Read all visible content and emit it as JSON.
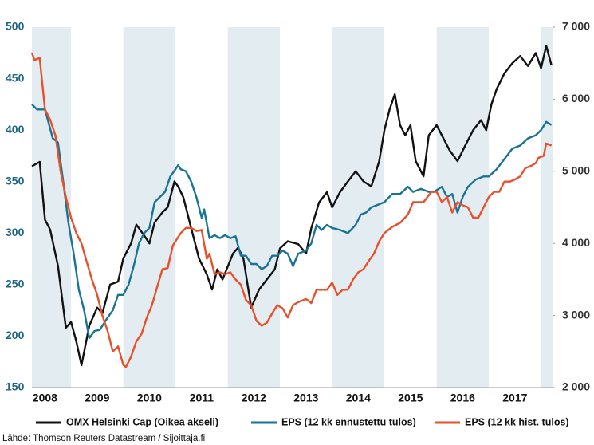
{
  "chart_data": {
    "type": "line",
    "source": "Lähde: Thomson Reuters Datastream / Sijoittaja.fi",
    "xlim": [
      2008.25,
      2018.22
    ],
    "xticks": [
      {
        "value": 2008.5,
        "label": "2008"
      },
      {
        "value": 2009.5,
        "label": "2009"
      },
      {
        "value": 2010.5,
        "label": "2010"
      },
      {
        "value": 2011.5,
        "label": "2011"
      },
      {
        "value": 2012.5,
        "label": "2012"
      },
      {
        "value": 2013.5,
        "label": "2013"
      },
      {
        "value": 2014.5,
        "label": "2014"
      },
      {
        "value": 2015.5,
        "label": "2015"
      },
      {
        "value": 2016.5,
        "label": "2016"
      },
      {
        "value": 2017.5,
        "label": "2017"
      }
    ],
    "ylim": [
      150,
      500
    ],
    "yticks": [
      150,
      200,
      250,
      300,
      350,
      400,
      450,
      500
    ],
    "y2lim": [
      2000,
      7000
    ],
    "y2ticks": [
      {
        "value": 2000,
        "label": "2 000"
      },
      {
        "value": 3000,
        "label": "3 000"
      },
      {
        "value": 4000,
        "label": "4 000"
      },
      {
        "value": 5000,
        "label": "5 000"
      },
      {
        "value": 6000,
        "label": "6 000"
      },
      {
        "value": 7000,
        "label": "7 000"
      }
    ],
    "alternate_year_shading": "#e3edf1",
    "series": [
      {
        "name": "OMX Helsinki Cap (Oikea akseli)",
        "color": "#111111",
        "axis": "y2",
        "x": [
          2008.25,
          2008.4,
          2008.5,
          2008.6,
          2008.75,
          2008.9,
          2009.0,
          2009.1,
          2009.2,
          2009.35,
          2009.5,
          2009.6,
          2009.75,
          2009.9,
          2010.0,
          2010.15,
          2010.25,
          2010.4,
          2010.5,
          2010.6,
          2010.75,
          2010.85,
          2010.98,
          2011.05,
          2011.15,
          2011.3,
          2011.45,
          2011.6,
          2011.7,
          2011.8,
          2011.9,
          2012.1,
          2012.2,
          2012.3,
          2012.45,
          2012.6,
          2012.75,
          2012.9,
          2013.0,
          2013.15,
          2013.35,
          2013.5,
          2013.6,
          2013.75,
          2013.9,
          2014.0,
          2014.15,
          2014.3,
          2014.45,
          2014.6,
          2014.75,
          2014.9,
          2015.0,
          2015.1,
          2015.2,
          2015.3,
          2015.4,
          2015.5,
          2015.6,
          2015.75,
          2015.85,
          2016.0,
          2016.1,
          2016.25,
          2016.4,
          2016.55,
          2016.7,
          2016.85,
          2016.95,
          2017.05,
          2017.15,
          2017.3,
          2017.45,
          2017.6,
          2017.75,
          2017.9,
          2018.0,
          2018.1,
          2018.2
        ],
        "values": [
          5070,
          5130,
          4330,
          4190,
          3690,
          2830,
          2910,
          2640,
          2310,
          2860,
          3110,
          3030,
          3430,
          3470,
          3790,
          4000,
          4260,
          4110,
          4000,
          4290,
          4430,
          4500,
          4860,
          4790,
          4640,
          4210,
          3790,
          3570,
          3360,
          3640,
          3500,
          3860,
          3940,
          3790,
          3110,
          3360,
          3500,
          3640,
          3930,
          4030,
          3990,
          3860,
          4210,
          4570,
          4710,
          4500,
          4710,
          4860,
          5000,
          4860,
          4790,
          5140,
          5570,
          5860,
          6070,
          5640,
          5500,
          5640,
          5140,
          4930,
          5500,
          5640,
          5500,
          5290,
          5140,
          5360,
          5570,
          5710,
          5570,
          5930,
          6140,
          6360,
          6500,
          6600,
          6460,
          6640,
          6430,
          6740,
          6470
        ]
      },
      {
        "name": "EPS (12 kk ennustettu tulos)",
        "color": "#1a7394",
        "x": [
          2008.25,
          2008.35,
          2008.5,
          2008.65,
          2008.75,
          2008.85,
          2008.95,
          2009.05,
          2009.15,
          2009.25,
          2009.35,
          2009.45,
          2009.55,
          2009.7,
          2009.8,
          2009.9,
          2010.0,
          2010.1,
          2010.2,
          2010.3,
          2010.4,
          2010.5,
          2010.6,
          2010.7,
          2010.8,
          2010.9,
          2011.0,
          2011.05,
          2011.1,
          2011.2,
          2011.3,
          2011.4,
          2011.5,
          2011.55,
          2011.65,
          2011.75,
          2011.85,
          2011.95,
          2012.05,
          2012.15,
          2012.25,
          2012.35,
          2012.45,
          2012.55,
          2012.65,
          2012.75,
          2012.85,
          2012.95,
          2013.05,
          2013.15,
          2013.25,
          2013.35,
          2013.5,
          2013.6,
          2013.7,
          2013.8,
          2013.9,
          2014.0,
          2014.15,
          2014.3,
          2014.45,
          2014.55,
          2014.65,
          2014.75,
          2014.9,
          2015.0,
          2015.15,
          2015.3,
          2015.45,
          2015.55,
          2015.7,
          2015.85,
          2015.95,
          2016.1,
          2016.2,
          2016.3,
          2016.4,
          2016.5,
          2016.6,
          2016.75,
          2016.9,
          2017.0,
          2017.15,
          2017.3,
          2017.45,
          2017.6,
          2017.75,
          2017.9,
          2018.0,
          2018.1,
          2018.2
        ],
        "values": [
          425,
          420,
          420,
          392,
          388,
          350,
          310,
          280,
          245,
          225,
          198,
          205,
          206,
          218,
          225,
          240,
          240,
          250,
          268,
          290,
          300,
          305,
          330,
          335,
          340,
          355,
          362,
          366,
          362,
          360,
          350,
          335,
          315,
          323,
          295,
          298,
          295,
          298,
          295,
          297,
          278,
          278,
          270,
          270,
          265,
          268,
          278,
          278,
          283,
          280,
          268,
          280,
          283,
          290,
          308,
          303,
          308,
          305,
          303,
          300,
          308,
          318,
          320,
          325,
          328,
          330,
          338,
          338,
          345,
          340,
          343,
          340,
          340,
          345,
          335,
          338,
          320,
          335,
          345,
          352,
          355,
          355,
          362,
          372,
          382,
          385,
          392,
          395,
          400,
          408,
          405
        ]
      },
      {
        "name": "EPS (12 kk hist. tulos)",
        "color": "#e8502a",
        "x": [
          2008.25,
          2008.3,
          2008.4,
          2008.5,
          2008.6,
          2008.7,
          2008.8,
          2008.9,
          2009.0,
          2009.1,
          2009.2,
          2009.3,
          2009.4,
          2009.5,
          2009.6,
          2009.7,
          2009.8,
          2009.9,
          2010.0,
          2010.05,
          2010.15,
          2010.25,
          2010.35,
          2010.45,
          2010.55,
          2010.65,
          2010.75,
          2010.85,
          2010.95,
          2011.1,
          2011.2,
          2011.3,
          2011.4,
          2011.5,
          2011.6,
          2011.65,
          2011.75,
          2011.85,
          2011.95,
          2012.05,
          2012.15,
          2012.25,
          2012.35,
          2012.45,
          2012.55,
          2012.65,
          2012.75,
          2012.85,
          2012.95,
          2013.05,
          2013.15,
          2013.25,
          2013.35,
          2013.5,
          2013.6,
          2013.7,
          2013.8,
          2013.9,
          2014.0,
          2014.1,
          2014.2,
          2014.3,
          2014.4,
          2014.5,
          2014.6,
          2014.7,
          2014.8,
          2014.9,
          2015.0,
          2015.15,
          2015.3,
          2015.45,
          2015.55,
          2015.65,
          2015.75,
          2015.9,
          2016.0,
          2016.1,
          2016.2,
          2016.3,
          2016.4,
          2016.5,
          2016.6,
          2016.7,
          2016.8,
          2016.9,
          2017.0,
          2017.1,
          2017.2,
          2017.3,
          2017.4,
          2017.5,
          2017.6,
          2017.7,
          2017.8,
          2017.9,
          2017.95,
          2018.05,
          2018.1,
          2018.2
        ],
        "values": [
          475,
          468,
          470,
          420,
          410,
          395,
          360,
          335,
          315,
          300,
          290,
          272,
          255,
          240,
          220,
          205,
          185,
          190,
          172,
          170,
          180,
          195,
          202,
          218,
          230,
          248,
          265,
          266,
          288,
          300,
          305,
          305,
          302,
          303,
          275,
          280,
          260,
          262,
          260,
          262,
          255,
          250,
          235,
          230,
          215,
          210,
          213,
          222,
          230,
          227,
          218,
          230,
          233,
          236,
          232,
          245,
          245,
          245,
          252,
          240,
          245,
          245,
          255,
          262,
          265,
          273,
          280,
          292,
          300,
          306,
          310,
          318,
          330,
          330,
          330,
          340,
          340,
          330,
          335,
          320,
          330,
          327,
          325,
          315,
          315,
          325,
          335,
          340,
          340,
          350,
          350,
          352,
          355,
          363,
          365,
          368,
          373,
          375,
          387,
          385
        ]
      }
    ]
  }
}
